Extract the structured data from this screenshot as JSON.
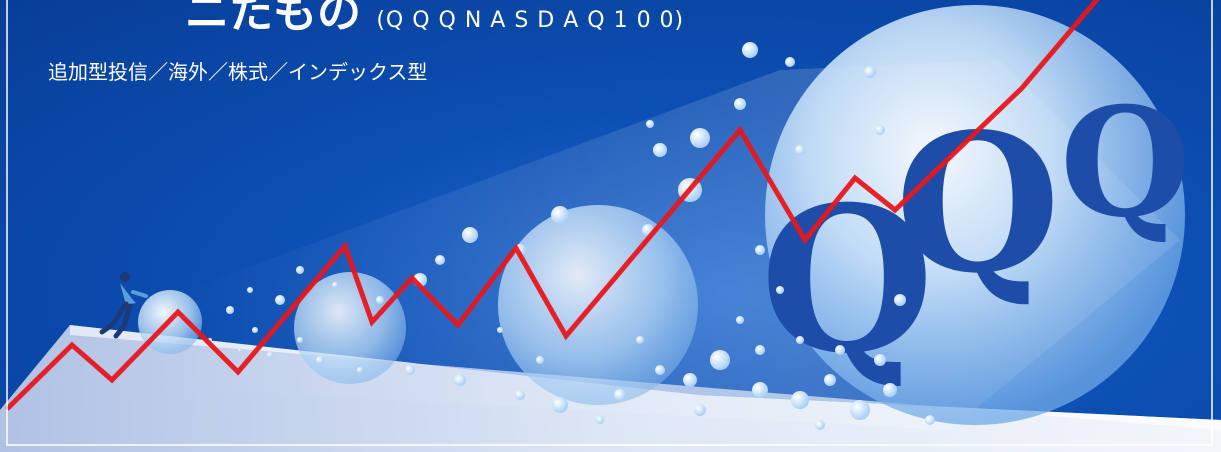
{
  "banner": {
    "title_fragment_main": "ニたもの",
    "title_fragment_sub": "(Q Q Q   N A S D A Q 1 0 0)",
    "category": "追加型投信／海外／株式／インデックス型"
  },
  "illustration": {
    "sphere_letters": "QQQ",
    "line_color": "#e8161b",
    "background_color": "#0c4fb3"
  }
}
